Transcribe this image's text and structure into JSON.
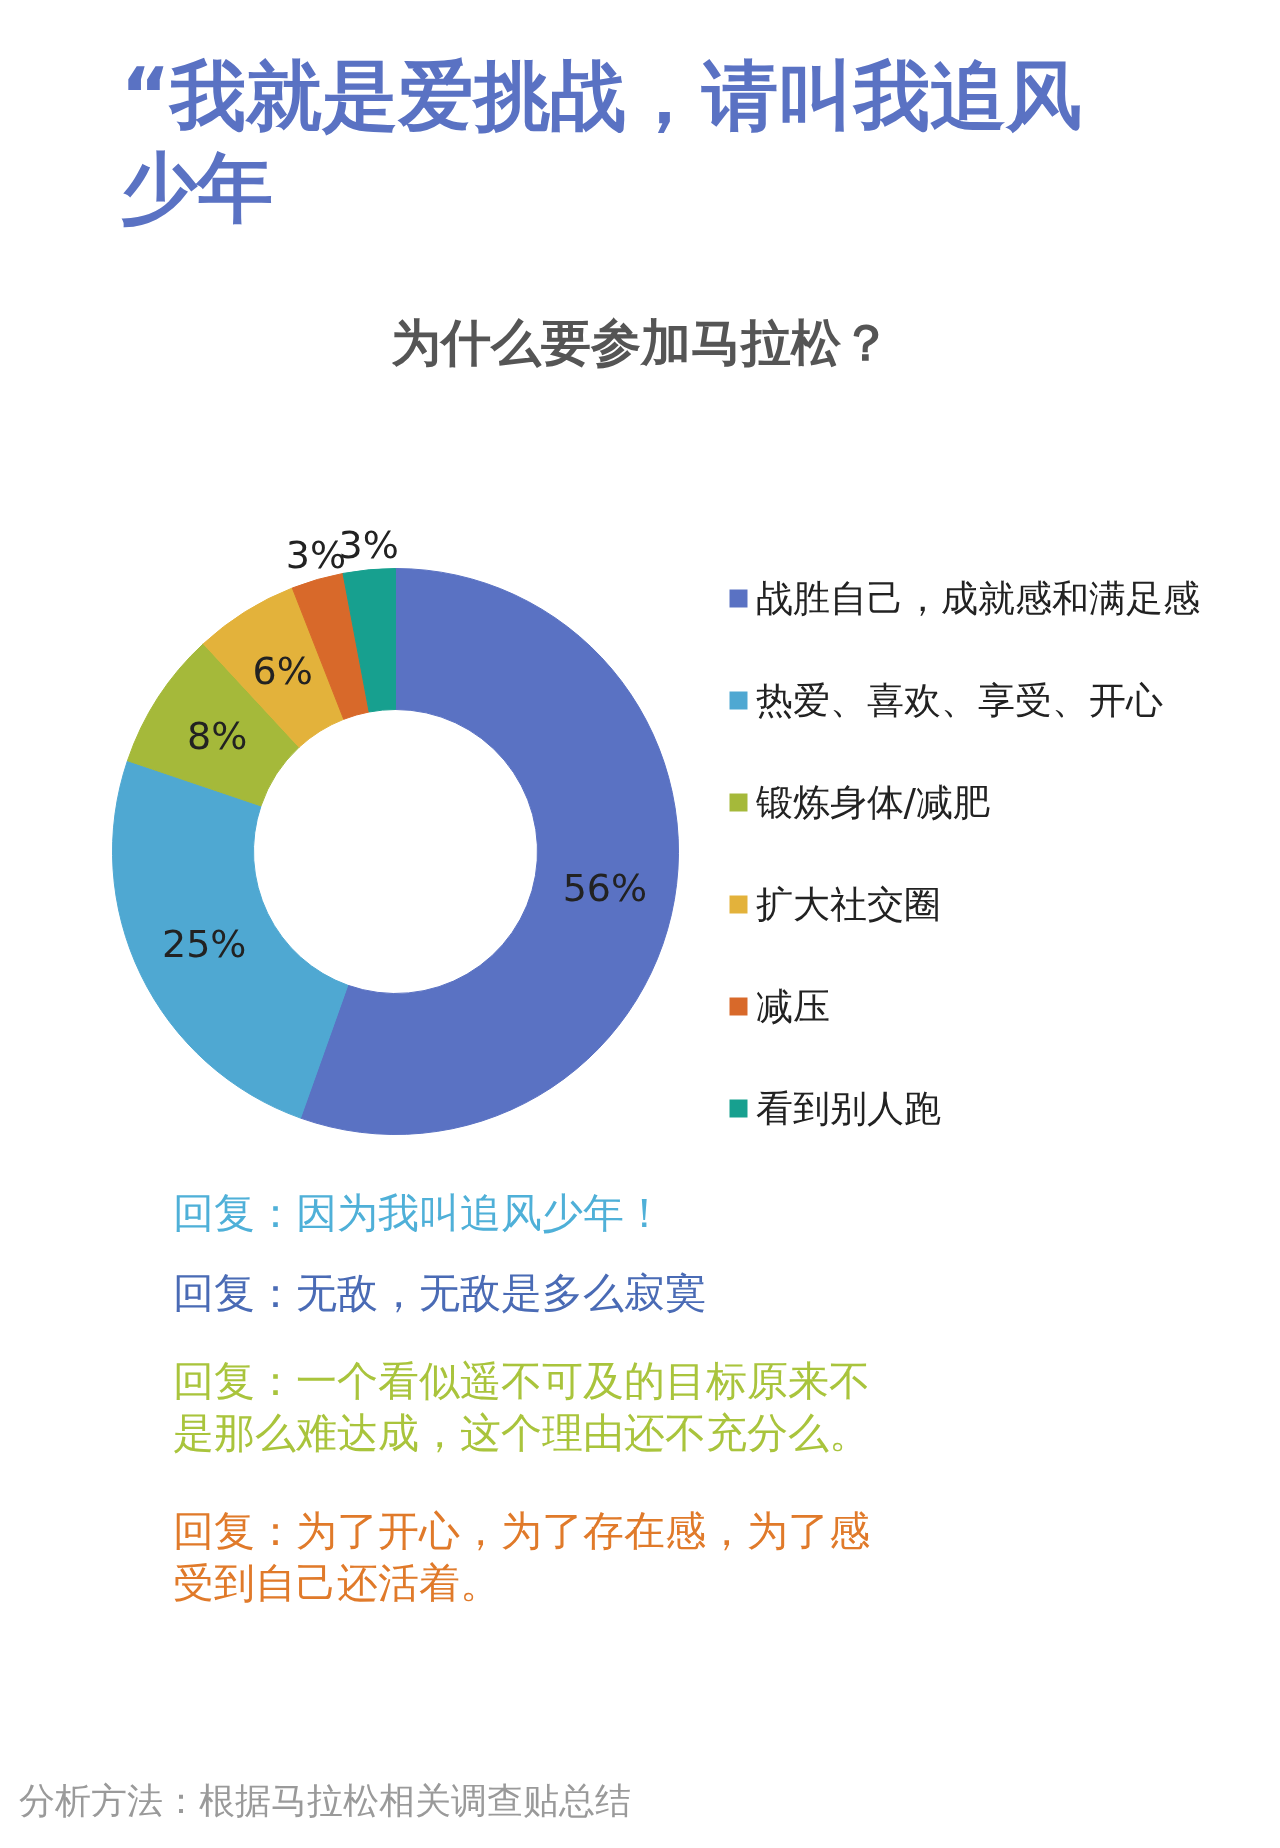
{
  "chart_data": {
    "type": "donut",
    "title": "“我就是爱挑战，请叫我追风少年",
    "subtitle": "为什么要参加马拉松？",
    "categories": [
      "战胜自己，成就感和满足感",
      "热爱、喜欢、享受、开心",
      "锻炼身体/减肥",
      "扩大社交圈",
      "减压",
      "看到别人跑"
    ],
    "values": [
      56,
      25,
      8,
      6,
      3,
      3
    ],
    "colors": [
      "#5a72c3",
      "#4fa8d2",
      "#a5b93a",
      "#e3b23b",
      "#d8692a",
      "#17a08f"
    ],
    "value_labels": [
      "56%",
      "25%",
      "8%",
      "6%",
      "3%",
      "3%"
    ],
    "legend": "right",
    "annotations": [
      "回复：因为我叫追风少年！",
      "回复：无敌，无敌是多么寂寞",
      "回复：一个看似遥不可及的目标原来不是那么难达成，这个理由还不充分么。",
      "回复：为了开心，为了存在感，为了感受到自己还活着。",
      "分析方法：根据马拉松相关调查贴总结"
    ]
  }
}
